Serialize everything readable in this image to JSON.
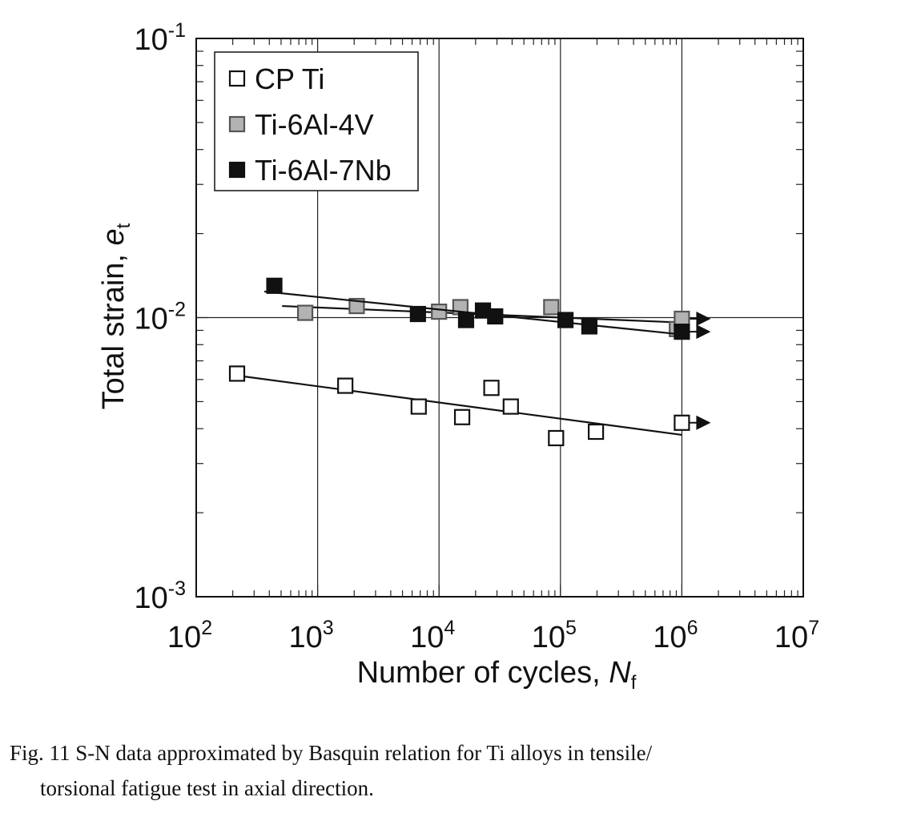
{
  "chart_data": {
    "type": "scatter",
    "xlabel": "Number of cycles, ",
    "xlabel_italic": "N",
    "xlabel_sub": "f",
    "ylabel": "Total strain, ",
    "ylabel_italic": "e",
    "ylabel_sub": "t",
    "xscale": "log",
    "yscale": "log",
    "xlim": [
      100,
      10000000
    ],
    "ylim": [
      0.001,
      0.1
    ],
    "x_ticks": [
      {
        "base": "10",
        "exp": "2",
        "value": 100
      },
      {
        "base": "10",
        "exp": "3",
        "value": 1000
      },
      {
        "base": "10",
        "exp": "4",
        "value": 10000
      },
      {
        "base": "10",
        "exp": "5",
        "value": 100000
      },
      {
        "base": "10",
        "exp": "6",
        "value": 1000000
      },
      {
        "base": "10",
        "exp": "7",
        "value": 10000000
      }
    ],
    "y_ticks": [
      {
        "base": "10",
        "exp": "-1",
        "value": 0.1
      },
      {
        "base": "10",
        "exp": "-2",
        "value": 0.01
      },
      {
        "base": "10",
        "exp": "-3",
        "value": 0.001
      }
    ],
    "grid": "major decades",
    "legend_placement": "top-left",
    "series": [
      {
        "name": "CP Ti",
        "marker": "open-square",
        "fill": "#ffffff",
        "points": [
          [
            217,
            0.0063
          ],
          [
            1690,
            0.0057
          ],
          [
            6800,
            0.0048
          ],
          [
            15500,
            0.0044
          ],
          [
            27000,
            0.0056
          ],
          [
            39000,
            0.0048
          ],
          [
            92000,
            0.0037
          ],
          [
            196000,
            0.0039
          ],
          [
            1000000,
            0.0042
          ]
        ],
        "runout": [
          [
            1000000,
            0.0042
          ]
        ],
        "fit": [
          [
            217,
            0.0062
          ],
          [
            1000000,
            0.0038
          ]
        ]
      },
      {
        "name": "Ti-6Al-4V",
        "marker": "gray-square",
        "fill": "#b3b3b3",
        "points": [
          [
            790,
            0.0104
          ],
          [
            2100,
            0.011
          ],
          [
            10000,
            0.0105
          ],
          [
            15000,
            0.0109
          ],
          [
            84000,
            0.0109
          ],
          [
            910000,
            0.0091
          ],
          [
            1000000,
            0.0099
          ]
        ],
        "runout": [
          [
            1000000,
            0.0099
          ]
        ],
        "fit": [
          [
            510,
            0.011
          ],
          [
            1000000,
            0.0096
          ]
        ]
      },
      {
        "name": "Ti-6Al-7Nb",
        "marker": "filled-square",
        "fill": "#111111",
        "points": [
          [
            440,
            0.013
          ],
          [
            6700,
            0.0103
          ],
          [
            16700,
            0.0098
          ],
          [
            23000,
            0.0106
          ],
          [
            29000,
            0.0101
          ],
          [
            110000,
            0.0098
          ],
          [
            173000,
            0.0093
          ],
          [
            1000000,
            0.0089
          ]
        ],
        "runout": [
          [
            1000000,
            0.0089
          ]
        ],
        "fit": [
          [
            364,
            0.0124
          ],
          [
            1000000,
            0.0087
          ]
        ]
      }
    ]
  },
  "caption": {
    "line1": "Fig.  11    S-N data approximated by Basquin relation for Ti alloys in tensile/",
    "line2": "torsional fatigue test in axial direction."
  }
}
